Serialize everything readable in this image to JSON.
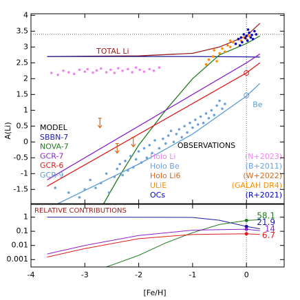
{
  "chart_data": [
    {
      "type": "line",
      "ylabel": "A(Li)",
      "xlim": [
        -4,
        0.7
      ],
      "ylim": [
        -1.95,
        4.05
      ],
      "xticks": [
        -4,
        -3,
        -2,
        -1,
        0
      ],
      "yticks": [
        -1.5,
        -1,
        -0.5,
        0,
        0.5,
        1,
        1.5,
        2,
        2.5,
        3,
        3.5,
        4
      ],
      "hline": 3.4,
      "vline": 0,
      "total": {
        "name": "TOTAL Li",
        "color": "#9b1c1c",
        "x": [
          -3.7,
          -2,
          -1,
          -0.5,
          0,
          0.25
        ],
        "values": [
          2.7,
          2.72,
          2.8,
          3.0,
          3.35,
          3.75
        ]
      },
      "model_title": "MODEL",
      "models": [
        {
          "name": "SBBN-7",
          "color": "#1a1aa0",
          "x": [
            -3.7,
            -1,
            0,
            0.25
          ],
          "values": [
            2.7,
            2.7,
            2.69,
            2.68
          ]
        },
        {
          "name": "NOVA-7",
          "color": "#1f7a1f",
          "x": [
            -2.65,
            -2.4,
            -2.0,
            -1.5,
            -1.0,
            -0.5,
            0,
            0.25
          ],
          "values": [
            -1.95,
            -1.2,
            -0.1,
            1.0,
            2.0,
            2.75,
            3.11,
            3.35
          ]
        },
        {
          "name": "GCR-7",
          "color": "#8b1fc9",
          "x": [
            -3.7,
            0,
            0.25
          ],
          "values": [
            -1.2,
            2.5,
            2.78
          ]
        },
        {
          "name": "GCR-6",
          "color": "#e01a1a",
          "x": [
            -3.7,
            0,
            0.25
          ],
          "values": [
            -1.4,
            2.18,
            2.5
          ]
        },
        {
          "name": "GCR-9",
          "color": "#5b9bd5",
          "x": [
            -3.5,
            -2,
            -1,
            0,
            0.25
          ],
          "values": [
            -1.95,
            -0.7,
            0.25,
            1.45,
            1.85
          ]
        }
      ],
      "solar_markers": {
        "x": [
          0,
          0
        ],
        "values": [
          2.18,
          1.47
        ],
        "colors": [
          "#e01a1a",
          "#5b9bd5"
        ]
      },
      "be_label": "Be",
      "obs_title": "OBSERVATIONS",
      "observations": [
        {
          "name": "Holo Li",
          "ref": "(N+2023)",
          "color": "#ee82ee",
          "kind": "point",
          "x": [
            -3.62,
            -3.5,
            -3.4,
            -3.3,
            -3.2,
            -3.1,
            -3.0,
            -2.95,
            -2.85,
            -2.78,
            -2.7,
            -2.6,
            -2.52,
            -2.45,
            -2.38,
            -2.3,
            -2.2,
            -2.12,
            -2.05,
            -1.98,
            -1.9,
            -1.8,
            -1.72,
            -1.62
          ],
          "values": [
            2.18,
            2.12,
            2.25,
            2.2,
            2.15,
            2.28,
            2.22,
            2.3,
            2.19,
            2.26,
            2.32,
            2.2,
            2.28,
            2.18,
            2.33,
            2.25,
            2.3,
            2.2,
            2.35,
            2.28,
            2.22,
            2.3,
            2.25,
            2.35
          ]
        },
        {
          "name": "Holo Be",
          "ref": "(B+2011)",
          "color": "#6ca0dc",
          "kind": "point",
          "x": [
            -3.55,
            -3.3,
            -3.1,
            -3.0,
            -2.9,
            -2.8,
            -2.7,
            -2.6,
            -2.55,
            -2.45,
            -2.4,
            -2.35,
            -2.3,
            -2.25,
            -2.2,
            -2.15,
            -2.1,
            -2.05,
            -2.0,
            -1.95,
            -1.9,
            -1.85,
            -1.8,
            -1.75,
            -1.7,
            -1.62,
            -1.55,
            -1.5,
            -1.45,
            -1.4,
            -1.35,
            -1.3,
            -1.25,
            -1.2,
            -1.15,
            -1.1,
            -1.05,
            -1.0,
            -0.95,
            -0.9,
            -0.85,
            -0.8,
            -0.75,
            -0.7,
            -0.65,
            -0.6,
            -0.55,
            -0.5,
            -0.45,
            -0.4
          ],
          "values": [
            -1.45,
            -1.6,
            -1.75,
            -1.5,
            -1.2,
            -1.45,
            -1.3,
            -1.0,
            -1.6,
            -1.1,
            -0.85,
            -0.7,
            -1.05,
            -0.6,
            -0.9,
            -0.45,
            -0.8,
            -0.55,
            -0.3,
            -0.65,
            -0.2,
            -0.5,
            -0.1,
            -0.35,
            0.05,
            -0.2,
            0.1,
            -0.05,
            0.2,
            0.35,
            0.0,
            0.25,
            0.4,
            0.15,
            0.5,
            0.3,
            0.6,
            0.45,
            0.7,
            0.55,
            0.8,
            0.6,
            0.9,
            0.75,
            1.0,
            0.85,
            1.15,
            1.3,
            1.05,
            1.2
          ]
        },
        {
          "name": "Holo Li6",
          "ref": "(W+2022)",
          "color": "#d2691e",
          "kind": "upper",
          "x": [
            -2.72,
            -2.4,
            -2.1
          ],
          "values": [
            0.75,
            -0.05,
            0.15
          ]
        },
        {
          "name": "ULiE",
          "ref": "(GALAH DR4)",
          "color": "#ff8c00",
          "kind": "point",
          "x": [
            -0.75,
            -0.7,
            -0.62,
            -0.55,
            -0.5,
            -0.45,
            -0.4,
            -0.35,
            -0.3,
            -0.25,
            -0.2,
            -0.15,
            -0.1,
            -0.05,
            0.0,
            0.05,
            -0.6,
            -0.3
          ],
          "values": [
            2.45,
            2.6,
            2.7,
            2.55,
            2.8,
            2.95,
            2.85,
            3.05,
            3.0,
            3.15,
            3.1,
            3.25,
            3.2,
            3.3,
            3.25,
            3.35,
            2.9,
            3.2
          ]
        },
        {
          "name": "OCs",
          "ref": "(R+2021)",
          "color": "#0000cd",
          "kind": "point",
          "x": [
            -0.2,
            -0.15,
            -0.1,
            -0.08,
            -0.05,
            -0.02,
            0.0,
            0.02,
            0.05,
            0.08,
            0.1,
            0.12,
            0.15,
            0.18,
            -0.12,
            0.03
          ],
          "values": [
            3.1,
            3.25,
            3.3,
            3.15,
            3.4,
            3.28,
            3.35,
            3.2,
            3.45,
            3.3,
            3.38,
            3.25,
            3.5,
            3.4,
            3.05,
            3.55
          ]
        }
      ]
    },
    {
      "type": "line",
      "title": "RELATIVE CONTRIBUTIONS",
      "xlabel": "[Fe/H]",
      "log_y": true,
      "xlim": [
        -4,
        0.7
      ],
      "ylim": [
        0.0003,
        8
      ],
      "xticks": [
        -4,
        -3,
        -2,
        -1,
        0
      ],
      "yticks": [
        0.001,
        0.01,
        0.1,
        1
      ],
      "vline": 0,
      "series": [
        {
          "name": "SBBN-7",
          "color": "#1a1aa0",
          "x": [
            -3.7,
            -2,
            -1,
            -0.5,
            0,
            0.25
          ],
          "values": [
            1,
            0.99,
            0.95,
            0.6,
            0.219,
            0.15
          ]
        },
        {
          "name": "NOVA-7",
          "color": "#1f7a1f",
          "x": [
            -2.6,
            -2.0,
            -1.5,
            -1.0,
            -0.5,
            0,
            0.25
          ],
          "values": [
            0.0003,
            0.002,
            0.015,
            0.08,
            0.3,
            0.581,
            0.65
          ]
        },
        {
          "name": "GCR-7",
          "color": "#8b1fc9",
          "x": [
            -3.7,
            -3,
            -2,
            -1,
            0,
            0.25
          ],
          "values": [
            0.0025,
            0.01,
            0.05,
            0.12,
            0.14,
            0.11
          ]
        },
        {
          "name": "GCR-6",
          "color": "#e01a1a",
          "x": [
            -3.7,
            -3,
            -2,
            -1,
            0,
            0.25
          ],
          "values": [
            0.0015,
            0.006,
            0.03,
            0.06,
            0.067,
            0.06
          ]
        }
      ],
      "markers": {
        "x": 0,
        "values": [
          0.581,
          0.219,
          0.14,
          0.067
        ],
        "value_labels": [
          "58.1",
          "21.9",
          "14",
          "6.7"
        ],
        "colors": [
          "#1f7a1f",
          "#1a1aa0",
          "#8b1fc9",
          "#e01a1a"
        ]
      }
    }
  ]
}
